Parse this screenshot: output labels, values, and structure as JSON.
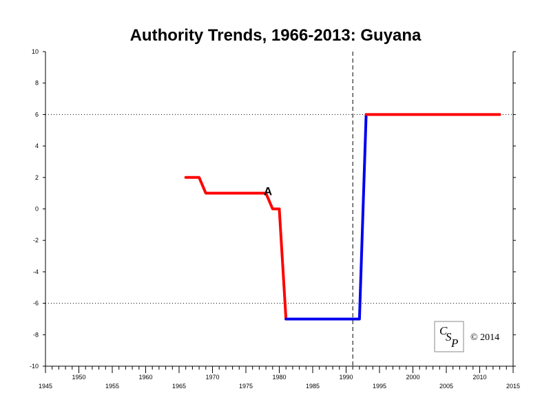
{
  "chart_data": {
    "type": "line",
    "title": "Authority Trends, 1966-2013: Guyana",
    "xlabel": "",
    "ylabel": "",
    "xlim": [
      1945,
      2015
    ],
    "ylim": [
      -10,
      10
    ],
    "x_ticks_lower": [
      1945,
      1955,
      1965,
      1975,
      1985,
      1995,
      2005,
      2015
    ],
    "x_ticks_upper": [
      1950,
      1960,
      1970,
      1980,
      1990,
      2000,
      2010
    ],
    "y_ticks": [
      10,
      8,
      6,
      4,
      2,
      0,
      -2,
      -4,
      -6,
      -8,
      -10
    ],
    "grid": false,
    "reference_lines": {
      "horizontal_dotted": [
        6,
        -6
      ],
      "vertical_dashed": [
        1991
      ]
    },
    "series": [
      {
        "color": "#ff0000",
        "points": [
          [
            1966,
            2
          ],
          [
            1968,
            2
          ],
          [
            1969,
            1
          ],
          [
            1978,
            1
          ],
          [
            1979,
            0
          ],
          [
            1980,
            0
          ]
        ]
      },
      {
        "color": "#ff0000",
        "points": [
          [
            1980,
            0
          ],
          [
            1981,
            -7
          ]
        ]
      },
      {
        "color": "#0000ee",
        "points": [
          [
            1981,
            -7
          ],
          [
            1992,
            -7
          ],
          [
            1993,
            6
          ]
        ]
      },
      {
        "color": "#ff0000",
        "points": [
          [
            1993,
            6
          ],
          [
            2013,
            6
          ]
        ]
      }
    ],
    "annotations": [
      {
        "text": "A",
        "x": 1978,
        "y": 1
      }
    ],
    "copyright": "© 2014",
    "logo": "CSP"
  }
}
